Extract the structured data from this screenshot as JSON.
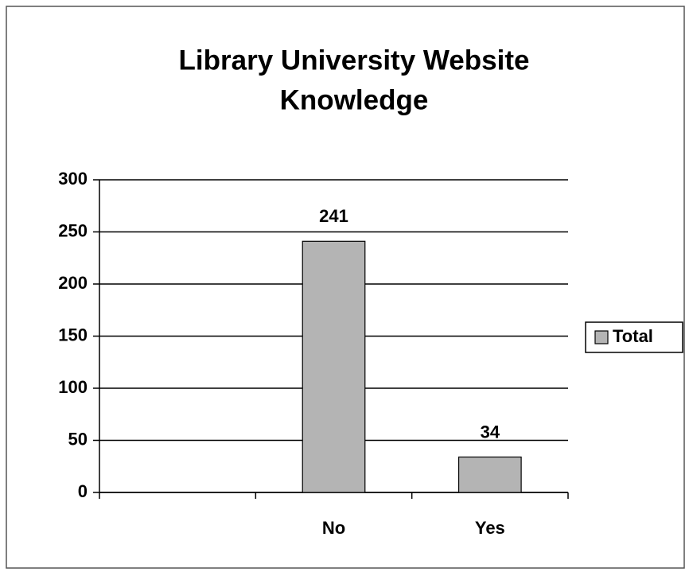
{
  "chart_data": {
    "type": "bar",
    "title": [
      "Library University Website",
      "Knowledge"
    ],
    "categories": [
      null,
      "No",
      "Yes"
    ],
    "series": [
      {
        "name": "Total",
        "color": "#b4b4b4",
        "values": [
          null,
          241,
          34
        ]
      }
    ],
    "ylim": [
      0,
      300
    ],
    "yticks": [
      0,
      50,
      100,
      150,
      200,
      250,
      300
    ],
    "grid": true,
    "legend": "right",
    "data_labels": true
  }
}
